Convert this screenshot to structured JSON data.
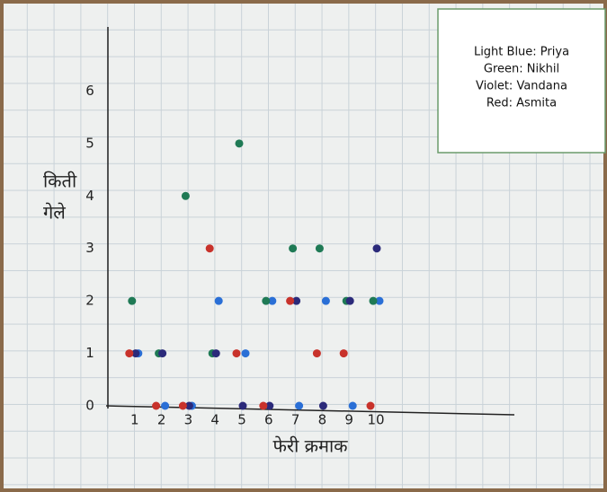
{
  "chart_data": {
    "type": "scatter",
    "y_label_lines": [
      "किती",
      "गेले"
    ],
    "x_label": "फेरी क्रमाक",
    "x": [
      1,
      2,
      3,
      4,
      5,
      6,
      7,
      8,
      9,
      10
    ],
    "series": [
      {
        "name": "Light Blue: Priya",
        "color": "#2a6fd6",
        "values": [
          1,
          0,
          0,
          2,
          1,
          2,
          0,
          2,
          0,
          2
        ]
      },
      {
        "name": "Green: Nikhil",
        "color": "#1f7a55",
        "values": [
          2,
          1,
          4,
          1,
          5,
          2,
          3,
          3,
          2,
          2
        ]
      },
      {
        "name": "Violet: Vandana",
        "color": "#2b2a7a",
        "values": [
          1,
          1,
          0,
          1,
          0,
          0,
          2,
          0,
          2,
          3
        ]
      },
      {
        "name": "Red: Asmita",
        "color": "#c8322b",
        "values": [
          1,
          0,
          0,
          3,
          1,
          0,
          2,
          1,
          1,
          0
        ]
      }
    ],
    "xlim": [
      0,
      15
    ],
    "ylim": [
      0,
      7
    ],
    "xticks": [
      1,
      2,
      3,
      4,
      5,
      6,
      7,
      8,
      9,
      10
    ],
    "yticks": [
      0,
      1,
      2,
      3,
      4,
      5,
      6
    ],
    "grid": false,
    "legend": "upper right"
  }
}
